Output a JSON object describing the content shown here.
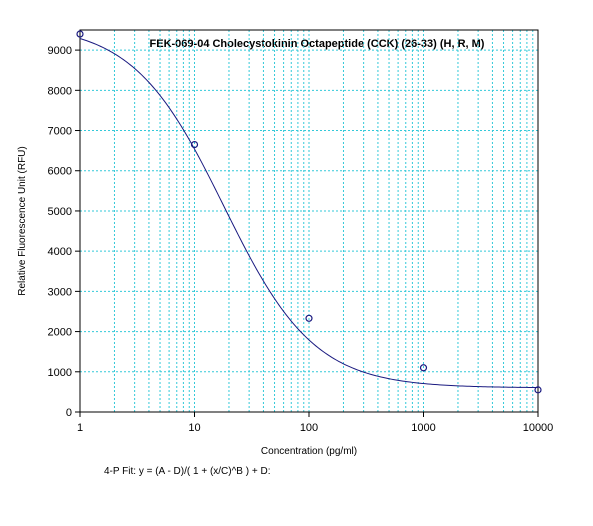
{
  "chart_data": {
    "type": "scatter",
    "title": "FEK-069-04 Cholecystokinin Octapeptide (CCK) (26-33) (H, R, M)",
    "xlabel": "Concentration (pg/ml)",
    "ylabel": "Relative Fluorescence Unit (RFU)",
    "x_scale": "log",
    "xlim": [
      1,
      10000
    ],
    "ylim": [
      0,
      9500
    ],
    "x_ticks": [
      1,
      10,
      100,
      1000,
      10000
    ],
    "x_tick_labels": [
      "1",
      "10",
      "100",
      "1000",
      "10000"
    ],
    "y_ticks": [
      0,
      1000,
      2000,
      3000,
      4000,
      5000,
      6000,
      7000,
      8000,
      9000
    ],
    "y_tick_labels": [
      "0",
      "1000",
      "2000",
      "3000",
      "4000",
      "5000",
      "6000",
      "7000",
      "8000",
      "9000"
    ],
    "grid": true,
    "series": [
      {
        "points": [
          {
            "x": 1,
            "y": 9400
          },
          {
            "x": 10,
            "y": 6650
          },
          {
            "x": 100,
            "y": 2330
          },
          {
            "x": 1000,
            "y": 1100
          },
          {
            "x": 10000,
            "y": 550
          }
        ],
        "color": "#1a1a80"
      }
    ],
    "fit": {
      "label": "4-P Fit: y = (A - D)/( 1 + (x/C)^B ) + D:",
      "model": "4PL",
      "A": 9650,
      "B": 1.1,
      "C": 18,
      "D": 600,
      "color": "#1a1a80"
    },
    "grid_color": "#33c9d9"
  }
}
